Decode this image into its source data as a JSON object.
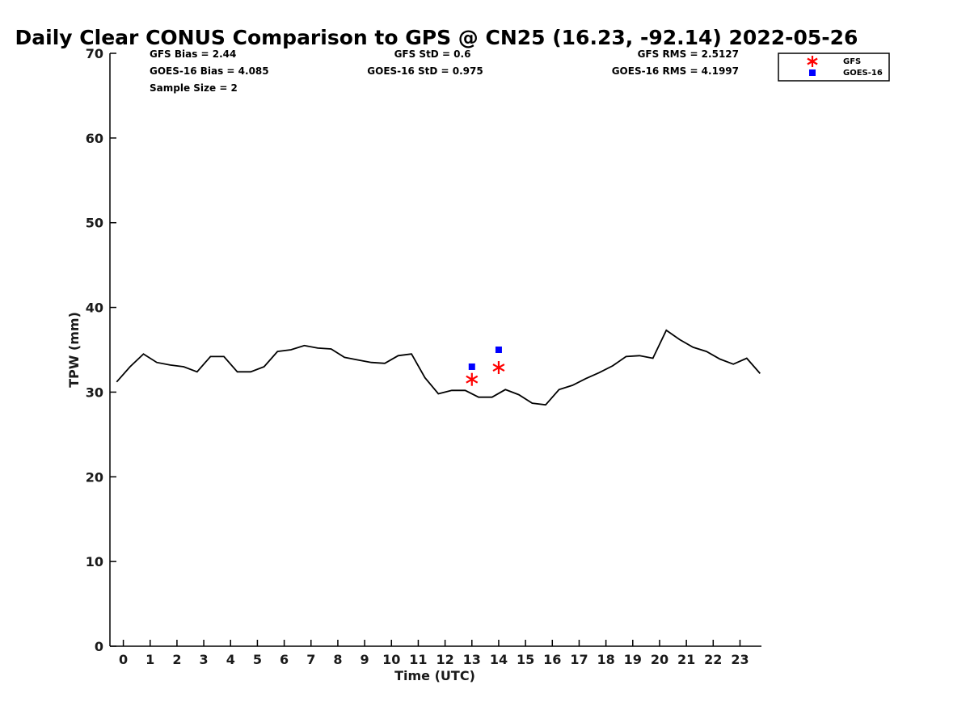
{
  "chart_data": {
    "type": "line",
    "title": "Daily Clear CONUS Comparison to GPS @ CN25 (16.23, -92.14) 2022-05-26",
    "xlabel": "Time (UTC)",
    "ylabel": "TPW (mm)",
    "xlim": [
      -0.5,
      23.8
    ],
    "ylim": [
      0,
      70
    ],
    "x_ticks": [
      0,
      1,
      2,
      3,
      4,
      5,
      6,
      7,
      8,
      9,
      10,
      11,
      12,
      13,
      14,
      15,
      16,
      17,
      18,
      19,
      20,
      21,
      22,
      23
    ],
    "y_ticks": [
      0,
      10,
      20,
      30,
      40,
      50,
      60,
      70
    ],
    "grid": false,
    "legend_position": "top-right",
    "stats": {
      "gfs_bias": "GFS Bias = 2.44",
      "goes_bias": "GOES-16 Bias = 4.085",
      "sample_size": "Sample Size = 2",
      "gfs_std": "GFS StD = 0.6",
      "goes_std": "GOES-16 StD = 0.975",
      "gfs_rms": "GFS RMS = 2.5127",
      "goes_rms": "GOES-16 RMS = 4.1997"
    },
    "series": [
      {
        "style": "line",
        "color": "#000000",
        "x": [
          -0.25,
          0.25,
          0.75,
          1.25,
          1.75,
          2.25,
          2.75,
          3.25,
          3.75,
          4.25,
          4.75,
          5.25,
          5.75,
          6.25,
          6.75,
          7.25,
          7.75,
          8.25,
          8.75,
          9.25,
          9.75,
          10.25,
          10.75,
          11.25,
          11.75,
          12.25,
          12.75,
          13.25,
          13.75,
          14.25,
          14.75,
          15.25,
          15.75,
          16.25,
          16.75,
          17.25,
          17.75,
          18.25,
          18.75,
          19.25,
          19.75,
          20.25,
          20.75,
          21.25,
          21.75,
          22.25,
          22.75,
          23.25,
          23.75
        ],
        "y": [
          31.2,
          33.0,
          34.5,
          33.5,
          33.2,
          33.0,
          32.4,
          34.2,
          34.2,
          32.4,
          32.4,
          33.0,
          34.8,
          35.0,
          35.5,
          35.2,
          35.1,
          34.1,
          33.8,
          33.5,
          33.4,
          34.3,
          34.5,
          31.7,
          29.8,
          30.2,
          30.2,
          29.4,
          29.4,
          30.3,
          29.7,
          28.7,
          28.5,
          30.3,
          30.8,
          31.6,
          32.3,
          33.1,
          34.2,
          34.3,
          34.0,
          37.3,
          36.2,
          35.3,
          34.8,
          33.9,
          33.3,
          34.0,
          32.2
        ]
      },
      {
        "name": "GFS",
        "style": "star",
        "color": "#ff0000",
        "x": [
          13,
          14
        ],
        "y": [
          31.5,
          32.9
        ]
      },
      {
        "name": "GOES-16",
        "style": "square",
        "color": "#0000ff",
        "x": [
          13,
          14
        ],
        "y": [
          33.0,
          35.0
        ]
      }
    ]
  }
}
